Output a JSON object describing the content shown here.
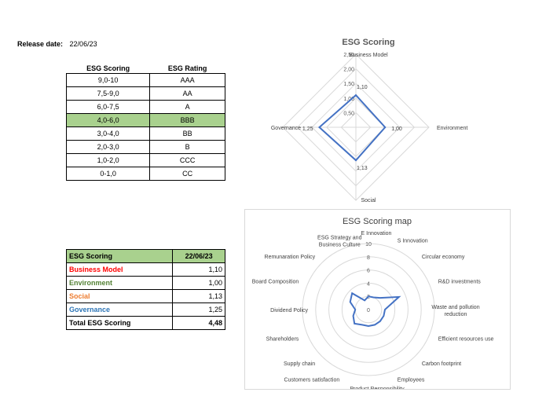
{
  "release": {
    "label": "Release date:",
    "value": "22/06/23"
  },
  "rating_table": {
    "headers": [
      "ESG Scoring",
      "ESG Rating"
    ],
    "rows": [
      [
        "9,0-10",
        "AAA"
      ],
      [
        "7,5-9,0",
        "AA"
      ],
      [
        "6,0-7,5",
        "A"
      ],
      [
        "4,0-6,0",
        "BBB"
      ],
      [
        "3,0-4,0",
        "BB"
      ],
      [
        "2,0-3,0",
        "B"
      ],
      [
        "1,0-2,0",
        "CCC"
      ],
      [
        "0-1,0",
        "CC"
      ]
    ],
    "highlight_row": 3,
    "highlight_color": "#a9d18e"
  },
  "summary_table": {
    "headers": [
      "ESG Scoring",
      "22/06/23"
    ],
    "rows": [
      {
        "label": "Business Model",
        "value": "1,10",
        "color": "#ff0000"
      },
      {
        "label": "Environment",
        "value": "1,00",
        "color": "#548235"
      },
      {
        "label": "Social",
        "value": "1,13",
        "color": "#ed7d31"
      },
      {
        "label": "Governance",
        "value": "1,25",
        "color": "#2e75b6"
      }
    ],
    "total": {
      "label": "Total ESG Scoring",
      "value": "4,48"
    }
  },
  "chart_data": [
    {
      "type": "radar",
      "title": "ESG Scoring",
      "axes": [
        "Business Model",
        "Environment",
        "Social",
        "Governance"
      ],
      "values": [
        1.1,
        1.0,
        1.13,
        1.25
      ],
      "value_labels": [
        "1,10",
        "1,00",
        "1,13",
        "1,25"
      ],
      "ticks": [
        0.5,
        1.0,
        1.5,
        2.0,
        2.5
      ],
      "tick_labels": [
        "0,50",
        "1,00",
        "1,50",
        "2,00",
        "2,50"
      ],
      "max": 2.5,
      "series_color": "#4472c4"
    },
    {
      "type": "radar",
      "title": "ESG Scoring map",
      "axes": [
        "E Innovation",
        "S Innovation",
        "Circular economy",
        "R&D investments",
        "Waste and pollution reduction",
        "Efficient resources use",
        "Carbon footprint",
        "Employees",
        "Product Responsibility",
        "Customers satisfaction",
        "Supply chain",
        "Shareholders",
        "Dividend Policy",
        "Board Composition",
        "Remunaration Policy",
        "ESG Strategy and Business Culture"
      ],
      "axis_lines": [
        [
          "E Innovation"
        ],
        [
          "S Innovation"
        ],
        [
          "Circular economy"
        ],
        [
          "R&D investments"
        ],
        [
          "Waste and pollution",
          "reduction"
        ],
        [
          "Efficient resources use"
        ],
        [
          "Carbon footprint"
        ],
        [
          "Employees"
        ],
        [
          "Product Responsibility"
        ],
        [
          "Customers satisfaction"
        ],
        [
          "Supply chain"
        ],
        [
          "Shareholders"
        ],
        [
          "Dividend Policy"
        ],
        [
          "Board Composition"
        ],
        [
          "Remunaration Policy"
        ],
        [
          "ESG Strategy and",
          "Business Culture"
        ]
      ],
      "values": [
        2,
        2,
        2.5,
        5,
        2.5,
        2.5,
        2.5,
        2.5,
        2.5,
        2.5,
        3,
        2.5,
        2,
        3,
        3.5,
        1.5
      ],
      "ticks": [
        0,
        2,
        4,
        6,
        8,
        10
      ],
      "tick_labels": [
        "0",
        "2",
        "4",
        "6",
        "8",
        "10"
      ],
      "max": 10,
      "series_color": "#4472c4"
    }
  ]
}
